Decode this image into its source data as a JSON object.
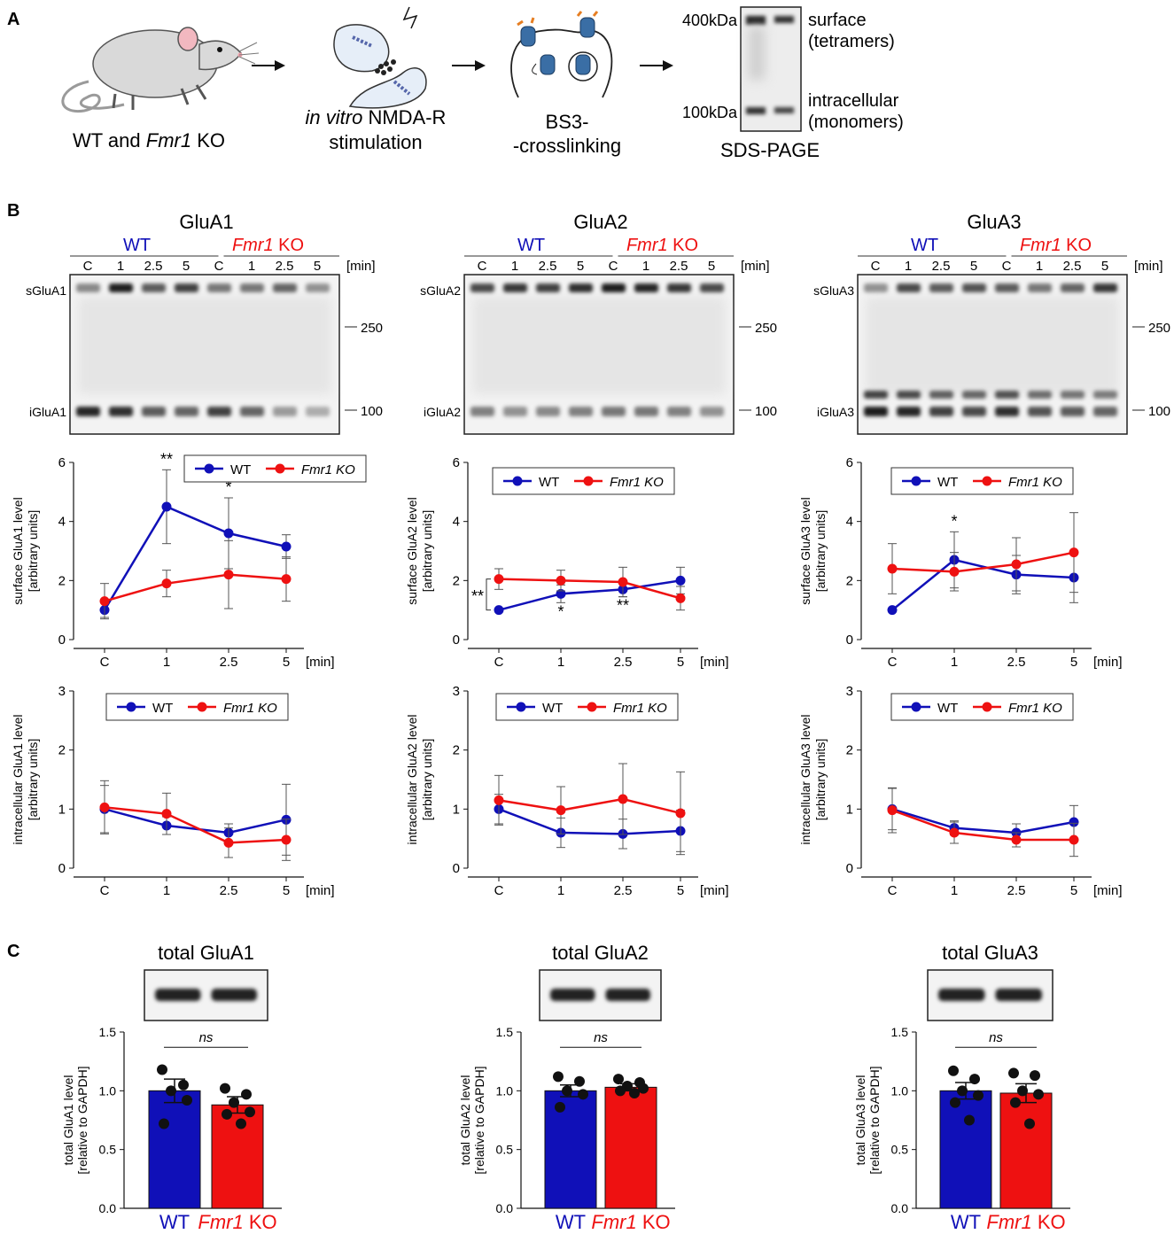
{
  "colors": {
    "wt": "#1010b8",
    "ko": "#ee1111",
    "black": "#111111"
  },
  "panel_letters": {
    "a": "A",
    "b": "B",
    "c": "C"
  },
  "panel_a": {
    "step1": {
      "line1_prefix": "WT and ",
      "line1_italic": "Fmr1",
      "line1_suffix": " KO"
    },
    "step2": {
      "line1_italic": "in vitro",
      "line1_suffix": " NMDA-R",
      "line2": "stimulation"
    },
    "step3": {
      "line1": "BS3-",
      "line2": "-crosslinking"
    },
    "step4": {
      "marker_400": "400kDa",
      "marker_100": "100kDa",
      "surface_line1": "surface",
      "surface_line2": "(tetramers)",
      "intracellular_line1": "intracellular",
      "intracellular_line2": "(monomers)",
      "title": "SDS-PAGE"
    }
  },
  "panel_b": {
    "common": {
      "wt_label": "WT",
      "ko_italic": "Fmr1",
      "ko_suffix": " KO",
      "lanes": [
        "C",
        "1",
        "2.5",
        "5",
        "C",
        "1",
        "2.5",
        "5"
      ],
      "min_label": "[min]",
      "marker_250": "250",
      "marker_100": "100",
      "legend_wt": "WT",
      "legend_ko": "Fmr1 KO",
      "xunit": "[min]",
      "ylabel_units": "[arbitrary units]"
    },
    "blots": [
      {
        "title": "GluA1",
        "surface_label": "sGluA1",
        "intra_label": "iGluA1"
      },
      {
        "title": "GluA2",
        "surface_label": "sGluA2",
        "intra_label": "iGluA2"
      },
      {
        "title": "GluA3",
        "surface_label": "sGluA3",
        "intra_label": "iGluA3"
      }
    ]
  },
  "panel_c": {
    "ylabel_units": "[relative to GAPDH]",
    "ns": "ns",
    "xlabel_wt": "WT",
    "xlabel_ko_italic": "Fmr1",
    "xlabel_ko_suffix": " KO",
    "titles": [
      "total GluA1",
      "total GluA2",
      "total GluA3"
    ]
  },
  "chart_data": [
    {
      "type": "line",
      "id": "surface-glua1",
      "categories": [
        "C",
        "1",
        "2.5",
        "5"
      ],
      "xlabel": "[min]",
      "ylabel": "surface GluA1 level",
      "ylim": [
        0,
        6
      ],
      "yticks": [
        0,
        2,
        4,
        6
      ],
      "series": [
        {
          "name": "WT",
          "values": [
            1.0,
            4.5,
            3.6,
            3.15
          ],
          "err": [
            0.25,
            1.25,
            1.2,
            0.4
          ]
        },
        {
          "name": "Fmr1 KO",
          "values": [
            1.3,
            1.9,
            2.2,
            2.05
          ],
          "err": [
            0.6,
            0.45,
            1.15,
            0.75
          ]
        }
      ],
      "stars": [
        {
          "x": "1",
          "text": "**",
          "pos": "above"
        },
        {
          "x": "2.5",
          "text": "*",
          "pos": "above"
        }
      ]
    },
    {
      "type": "line",
      "id": "surface-glua2",
      "categories": [
        "C",
        "1",
        "2.5",
        "5"
      ],
      "xlabel": "[min]",
      "ylabel": "surface GluA2 level",
      "ylim": [
        0,
        6
      ],
      "yticks": [
        0,
        2,
        4,
        6
      ],
      "series": [
        {
          "name": "WT",
          "values": [
            1.0,
            1.55,
            1.7,
            2.0
          ],
          "err": [
            0.0,
            0.3,
            0.25,
            0.45
          ]
        },
        {
          "name": "Fmr1 KO",
          "values": [
            2.05,
            2.0,
            1.95,
            1.4
          ],
          "err": [
            0.35,
            0.35,
            0.5,
            0.4
          ]
        }
      ],
      "stars": [
        {
          "x": "1",
          "text": "*",
          "pos": "below"
        },
        {
          "x": "2.5",
          "text": "**",
          "pos": "below"
        },
        {
          "x": "C",
          "text": "**",
          "pos": "bracket"
        }
      ]
    },
    {
      "type": "line",
      "id": "surface-glua3",
      "categories": [
        "C",
        "1",
        "2.5",
        "5"
      ],
      "xlabel": "[min]",
      "ylabel": "surface GluA3 level",
      "ylim": [
        0,
        6
      ],
      "yticks": [
        0,
        2,
        4,
        6
      ],
      "series": [
        {
          "name": "WT",
          "values": [
            1.0,
            2.7,
            2.2,
            2.1
          ],
          "err": [
            0.0,
            0.95,
            0.65,
            0.85
          ]
        },
        {
          "name": "Fmr1 KO",
          "values": [
            2.4,
            2.3,
            2.55,
            2.95
          ],
          "err": [
            0.85,
            0.65,
            0.9,
            1.35
          ]
        }
      ],
      "stars": [
        {
          "x": "1",
          "text": "*",
          "pos": "above"
        }
      ]
    },
    {
      "type": "line",
      "id": "intracellular-glua1",
      "categories": [
        "C",
        "1",
        "2.5",
        "5"
      ],
      "xlabel": "[min]",
      "ylabel": "intracellular GluA1 level",
      "ylim": [
        0,
        3
      ],
      "yticks": [
        0,
        1,
        2,
        3
      ],
      "series": [
        {
          "name": "WT",
          "values": [
            1.0,
            0.72,
            0.6,
            0.82
          ],
          "err": [
            0.4,
            0.15,
            0.15,
            0.6
          ]
        },
        {
          "name": "Fmr1 KO",
          "values": [
            1.03,
            0.92,
            0.43,
            0.48
          ],
          "err": [
            0.45,
            0.35,
            0.25,
            0.35
          ]
        }
      ],
      "stars": []
    },
    {
      "type": "line",
      "id": "intracellular-glua2",
      "categories": [
        "C",
        "1",
        "2.5",
        "5"
      ],
      "xlabel": "[min]",
      "ylabel": "intracellular GluA2 level",
      "ylim": [
        0,
        3
      ],
      "yticks": [
        0,
        1,
        2,
        3
      ],
      "series": [
        {
          "name": "WT",
          "values": [
            1.0,
            0.6,
            0.58,
            0.63
          ],
          "err": [
            0.25,
            0.25,
            0.25,
            0.35
          ]
        },
        {
          "name": "Fmr1 KO",
          "values": [
            1.15,
            0.98,
            1.17,
            0.93
          ],
          "err": [
            0.42,
            0.4,
            0.6,
            0.7
          ]
        }
      ],
      "stars": []
    },
    {
      "type": "line",
      "id": "intracellular-glua3",
      "categories": [
        "C",
        "1",
        "2.5",
        "5"
      ],
      "xlabel": "[min]",
      "ylabel": "intracellular GluA3 level",
      "ylim": [
        0,
        3
      ],
      "yticks": [
        0,
        1,
        2,
        3
      ],
      "series": [
        {
          "name": "WT",
          "values": [
            1.0,
            0.68,
            0.6,
            0.78
          ],
          "err": [
            0.35,
            0.12,
            0.15,
            0.28
          ]
        },
        {
          "name": "Fmr1 KO",
          "values": [
            0.98,
            0.6,
            0.48,
            0.48
          ],
          "err": [
            0.38,
            0.18,
            0.12,
            0.28
          ]
        }
      ],
      "stars": []
    },
    {
      "type": "bar",
      "id": "total-glua1",
      "categories": [
        "WT",
        "Fmr1 KO"
      ],
      "values": [
        1.0,
        0.88
      ],
      "sem": [
        0.1,
        0.07
      ],
      "points": [
        [
          1.18,
          1.05,
          1.0,
          0.92,
          0.72
        ],
        [
          1.02,
          0.97,
          0.9,
          0.82,
          0.8,
          0.72
        ]
      ],
      "ylabel": "total GluA1 level",
      "ylim": [
        0,
        1.5
      ],
      "yticks": [
        0.0,
        0.5,
        1.0,
        1.5
      ],
      "annotation": "ns"
    },
    {
      "type": "bar",
      "id": "total-glua2",
      "categories": [
        "WT",
        "Fmr1 KO"
      ],
      "values": [
        1.0,
        1.03
      ],
      "sem": [
        0.05,
        0.03
      ],
      "points": [
        [
          1.12,
          1.08,
          1.0,
          0.97,
          0.86
        ],
        [
          1.1,
          1.07,
          1.04,
          1.02,
          1.0,
          0.98
        ]
      ],
      "ylabel": "total GluA2 level",
      "ylim": [
        0,
        1.5
      ],
      "yticks": [
        0.0,
        0.5,
        1.0,
        1.5
      ],
      "annotation": "ns"
    },
    {
      "type": "bar",
      "id": "total-glua3",
      "categories": [
        "WT",
        "Fmr1 KO"
      ],
      "values": [
        1.0,
        0.98
      ],
      "sem": [
        0.07,
        0.08
      ],
      "points": [
        [
          1.17,
          1.1,
          1.0,
          0.96,
          0.9,
          0.75
        ],
        [
          1.15,
          1.13,
          1.0,
          0.97,
          0.9,
          0.72
        ]
      ],
      "ylabel": "total GluA3 level",
      "ylim": [
        0,
        1.5
      ],
      "yticks": [
        0.0,
        0.5,
        1.0,
        1.5
      ],
      "annotation": "ns"
    }
  ]
}
